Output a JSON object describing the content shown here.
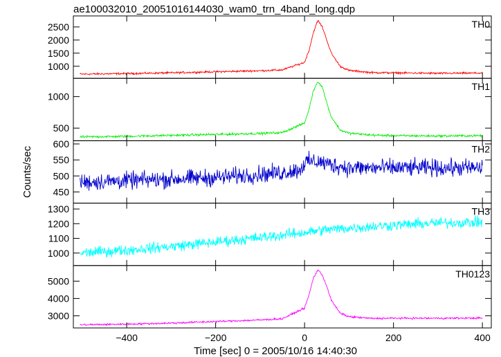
{
  "title": "ae100032010_20051016144030_wam0_trn_4band_long.qdp",
  "chart_data": {
    "type": "line",
    "xlabel": "Time [sec] 0 = 2005/10/16 14:40:30",
    "ylabel": "Counts/sec",
    "xlim": [
      -520,
      420
    ],
    "x_ticks": [
      -400,
      -200,
      0,
      200,
      400
    ],
    "x_tick_labels": [
      "−400",
      "−200",
      "0",
      "200",
      "400"
    ],
    "x_range": [
      -505,
      400
    ],
    "grid": false,
    "series": [
      {
        "name": "TH0",
        "color": "#ff0000",
        "ylim": [
          540,
          2920
        ],
        "y_ticks": [
          1000,
          1500,
          2000,
          2500
        ],
        "y_tick_labels": [
          "1000",
          "1500",
          "2000",
          "2500"
        ],
        "x": [
          -505,
          -400,
          -300,
          -200,
          -100,
          -50,
          0,
          10,
          20,
          30,
          40,
          50,
          60,
          80,
          100,
          150,
          200,
          300,
          400
        ],
        "y": [
          700,
          720,
          750,
          790,
          830,
          860,
          1150,
          1600,
          2300,
          2750,
          2500,
          2000,
          1500,
          1000,
          840,
          760,
          750,
          730,
          740
        ],
        "noise": 30
      },
      {
        "name": "TH1",
        "color": "#00ee00",
        "ylim": [
          300,
          1290
        ],
        "y_ticks": [
          500,
          1000
        ],
        "y_tick_labels": [
          "500",
          "1000"
        ],
        "x": [
          -505,
          -400,
          -300,
          -200,
          -100,
          -50,
          0,
          10,
          20,
          30,
          40,
          50,
          60,
          80,
          100,
          150,
          200,
          300,
          400
        ],
        "y": [
          360,
          370,
          385,
          400,
          415,
          430,
          580,
          800,
          1100,
          1240,
          1150,
          900,
          680,
          470,
          420,
          390,
          380,
          375,
          380
        ],
        "noise": 15
      },
      {
        "name": "TH2",
        "color": "#0000cc",
        "ylim": [
          415,
          610
        ],
        "y_ticks": [
          450,
          500,
          550,
          600
        ],
        "y_tick_labels": [
          "450",
          "500",
          "550",
          "600"
        ],
        "x": [
          -505,
          -400,
          -300,
          -200,
          -100,
          -50,
          -10,
          0,
          10,
          30,
          60,
          100,
          200,
          300,
          400
        ],
        "y": [
          480,
          485,
          490,
          495,
          505,
          510,
          520,
          540,
          545,
          545,
          535,
          525,
          525,
          525,
          525
        ],
        "noise": 22
      },
      {
        "name": "TH3",
        "color": "#00ffff",
        "ylim": [
          915,
          1340
        ],
        "y_ticks": [
          1000,
          1100,
          1200,
          1300
        ],
        "y_tick_labels": [
          "1000",
          "1100",
          "1200",
          "1300"
        ],
        "x": [
          -505,
          -400,
          -300,
          -200,
          -100,
          0,
          50,
          100,
          200,
          300,
          400
        ],
        "y": [
          1000,
          1020,
          1045,
          1075,
          1105,
          1140,
          1160,
          1170,
          1190,
          1205,
          1210
        ],
        "noise": 30
      },
      {
        "name": "TH0123",
        "color": "#ff00ff",
        "ylim": [
          2300,
          5900
        ],
        "y_ticks": [
          3000,
          4000,
          5000
        ],
        "y_tick_labels": [
          "3000",
          "4000",
          "5000"
        ],
        "x": [
          -505,
          -400,
          -300,
          -200,
          -100,
          -50,
          0,
          10,
          20,
          30,
          40,
          50,
          60,
          80,
          100,
          150,
          200,
          300,
          400
        ],
        "y": [
          2480,
          2520,
          2580,
          2670,
          2760,
          2830,
          3450,
          4200,
          5200,
          5650,
          5350,
          4700,
          3900,
          3150,
          2950,
          2850,
          2860,
          2860,
          2870
        ],
        "noise": 45
      }
    ]
  }
}
